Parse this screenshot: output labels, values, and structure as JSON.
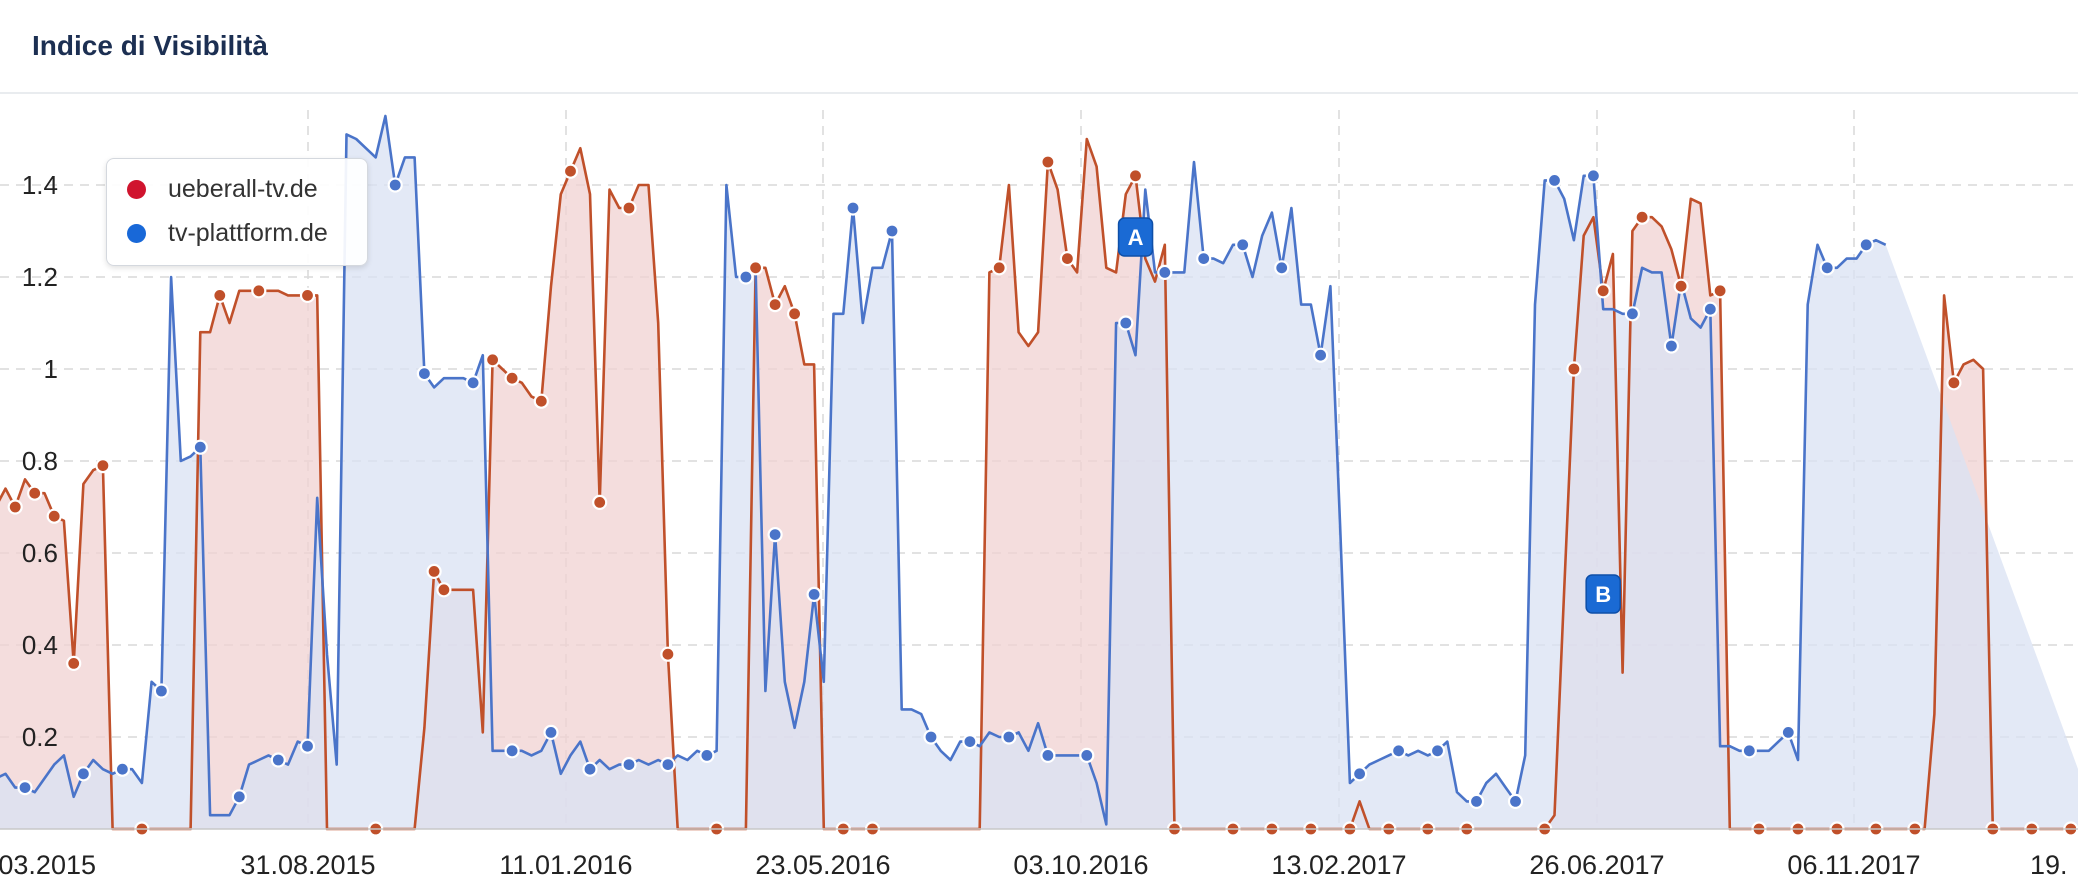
{
  "header": {
    "title": "Indice di Visibilità"
  },
  "chart_data": {
    "type": "area",
    "title": "Indice di Visibilità",
    "xlabel": "",
    "ylabel": "",
    "ylim": [
      0,
      1.55
    ],
    "y_ticks": [
      "0.2",
      "0.4",
      "0.6",
      "0.8",
      "1",
      "1.2",
      "1.4"
    ],
    "x_tick_labels": [
      "03.2015",
      "31.08.2015",
      "11.01.2016",
      "23.05.2016",
      "03.10.2016",
      "13.02.2017",
      "26.06.2017",
      "06.11.2017",
      "19."
    ],
    "grid": true,
    "legend": "top-left",
    "annotations": [
      {
        "label": "A",
        "index": 118
      },
      {
        "label": "B",
        "index": 166
      }
    ],
    "series": [
      {
        "name": "ueberall-tv.de",
        "color": "#c0502a",
        "fill": "#f0d2d2",
        "legend_color": "#d0142e",
        "values": [
          0.62,
          0.7,
          0.74,
          0.7,
          0.76,
          0.73,
          0.73,
          0.68,
          0.67,
          0.36,
          0.75,
          0.78,
          0.79,
          0.0,
          0.0,
          0.0,
          0.0,
          0.0,
          0.0,
          0.0,
          0.0,
          0.0,
          1.08,
          1.08,
          1.16,
          1.1,
          1.17,
          1.17,
          1.17,
          1.17,
          1.17,
          1.16,
          1.16,
          1.16,
          1.16,
          0.0,
          0.0,
          0.0,
          0.0,
          0.0,
          0.0,
          0.0,
          0.0,
          0.0,
          0.0,
          0.22,
          0.56,
          0.52,
          0.52,
          0.52,
          0.52,
          0.21,
          1.02,
          1.0,
          0.98,
          0.97,
          0.94,
          0.93,
          1.18,
          1.38,
          1.43,
          1.48,
          1.38,
          0.71,
          1.39,
          1.35,
          1.35,
          1.4,
          1.4,
          1.1,
          0.38,
          0.0,
          0.0,
          0.0,
          0.0,
          0.0,
          0.0,
          0.0,
          0.0,
          1.22,
          1.22,
          1.14,
          1.18,
          1.12,
          1.01,
          1.01,
          0.0,
          0.0,
          0.0,
          0.0,
          0.0,
          0.0,
          0.0,
          0.0,
          0.0,
          0.0,
          0.0,
          0.0,
          0.0,
          0.0,
          0.0,
          0.0,
          0.0,
          1.21,
          1.22,
          1.4,
          1.08,
          1.05,
          1.08,
          1.45,
          1.39,
          1.24,
          1.21,
          1.5,
          1.44,
          1.22,
          1.21,
          1.38,
          1.42,
          1.24,
          1.19,
          1.27,
          0.0,
          0.0,
          0.0,
          0.0,
          0.0,
          0.0,
          0.0,
          0.0,
          0.0,
          0.0,
          0.0,
          0.0,
          0.0,
          0.0,
          0.0,
          0.0,
          0.0,
          0.0,
          0.0,
          0.06,
          0.0,
          0.0,
          0.0,
          0.0,
          0.0,
          0.0,
          0.0,
          0.0,
          0.0,
          0.0,
          0.0,
          0.0,
          0.0,
          0.0,
          0.0,
          0.0,
          0.0,
          0.0,
          0.0,
          0.03,
          0.52,
          1.0,
          1.29,
          1.33,
          1.17,
          1.25,
          0.34,
          1.3,
          1.33,
          1.33,
          1.31,
          1.26,
          1.18,
          1.37,
          1.36,
          1.16,
          1.17,
          0.0,
          0.0,
          0.0,
          0.0,
          0.0,
          0.0,
          0.0,
          0.0,
          0.0,
          0.0,
          0.0,
          0.0,
          0.0,
          0.0,
          0.0,
          0.0,
          0.0,
          0.0,
          0.0,
          0.0,
          0.0,
          0.25,
          1.16,
          0.97,
          1.01,
          1.02,
          1.0,
          0.0,
          0.0,
          0.0,
          0.0,
          0.0,
          0.0,
          0.0,
          0.0,
          0.0,
          0.0,
          0.0,
          0.0
        ],
        "markers": [
          0,
          3,
          5,
          7,
          9,
          12,
          16,
          24,
          28,
          33,
          40,
          46,
          47,
          52,
          54,
          57,
          60,
          63,
          66,
          70,
          75,
          79,
          81,
          83,
          88,
          91,
          104,
          109,
          111,
          118,
          122,
          128,
          132,
          136,
          140,
          144,
          148,
          152,
          160,
          163,
          166,
          170,
          174,
          178,
          182,
          186,
          190,
          194,
          198,
          202,
          206,
          210,
          214,
          218,
          222,
          227,
          230,
          234
        ]
      },
      {
        "name": "tv-plattform.de",
        "color": "#4a74c9",
        "fill": "#d9e2f3",
        "legend_color": "#1868d8",
        "values": [
          0.1,
          0.11,
          0.12,
          0.09,
          0.09,
          0.08,
          0.11,
          0.14,
          0.16,
          0.07,
          0.12,
          0.15,
          0.13,
          0.12,
          0.13,
          0.13,
          0.1,
          0.32,
          0.3,
          1.2,
          0.8,
          0.81,
          0.83,
          0.03,
          0.03,
          0.03,
          0.07,
          0.14,
          0.15,
          0.16,
          0.15,
          0.14,
          0.19,
          0.18,
          0.72,
          0.38,
          0.14,
          1.51,
          1.5,
          1.48,
          1.46,
          1.55,
          1.4,
          1.46,
          1.46,
          0.99,
          0.96,
          0.98,
          0.98,
          0.98,
          0.97,
          1.03,
          0.17,
          0.17,
          0.17,
          0.17,
          0.16,
          0.17,
          0.21,
          0.12,
          0.16,
          0.19,
          0.13,
          0.15,
          0.13,
          0.14,
          0.14,
          0.15,
          0.14,
          0.15,
          0.14,
          0.16,
          0.15,
          0.17,
          0.16,
          0.17,
          1.4,
          1.2,
          1.2,
          1.22,
          0.3,
          0.64,
          0.32,
          0.22,
          0.32,
          0.51,
          0.32,
          1.12,
          1.12,
          1.35,
          1.1,
          1.22,
          1.22,
          1.3,
          0.26,
          0.26,
          0.25,
          0.2,
          0.17,
          0.15,
          0.19,
          0.19,
          0.18,
          0.21,
          0.2,
          0.2,
          0.21,
          0.17,
          0.23,
          0.16,
          0.16,
          0.16,
          0.16,
          0.16,
          0.1,
          0.01,
          1.1,
          1.1,
          1.03,
          1.39,
          1.21,
          1.21,
          1.21,
          1.21,
          1.45,
          1.24,
          1.24,
          1.23,
          1.27,
          1.27,
          1.2,
          1.29,
          1.34,
          1.22,
          1.35,
          1.14,
          1.14,
          1.03,
          1.18,
          0.66,
          0.1,
          0.12,
          0.14,
          0.15,
          0.16,
          0.17,
          0.16,
          0.17,
          0.16,
          0.17,
          0.19,
          0.08,
          0.06,
          0.06,
          0.1,
          0.12,
          0.09,
          0.06,
          0.16,
          1.14,
          1.41,
          1.41,
          1.37,
          1.28,
          1.42,
          1.42,
          1.13,
          1.13,
          1.12,
          1.12,
          1.22,
          1.21,
          1.21,
          1.05,
          1.19,
          1.11,
          1.09,
          1.13,
          0.18,
          0.18,
          0.17,
          0.17,
          0.17,
          0.17,
          0.19,
          0.21,
          0.15,
          1.14,
          1.27,
          1.22,
          1.22,
          1.24,
          1.24,
          1.27,
          1.28,
          1.27
        ],
        "markers": [
          0,
          4,
          10,
          14,
          18,
          22,
          26,
          30,
          33,
          42,
          45,
          50,
          54,
          58,
          62,
          66,
          70,
          74,
          78,
          81,
          85,
          89,
          93,
          97,
          101,
          105,
          109,
          113,
          117,
          121,
          125,
          129,
          133,
          137,
          141,
          145,
          149,
          153,
          157,
          161,
          165,
          169,
          173,
          177,
          181,
          185,
          189,
          193
        ]
      }
    ]
  }
}
